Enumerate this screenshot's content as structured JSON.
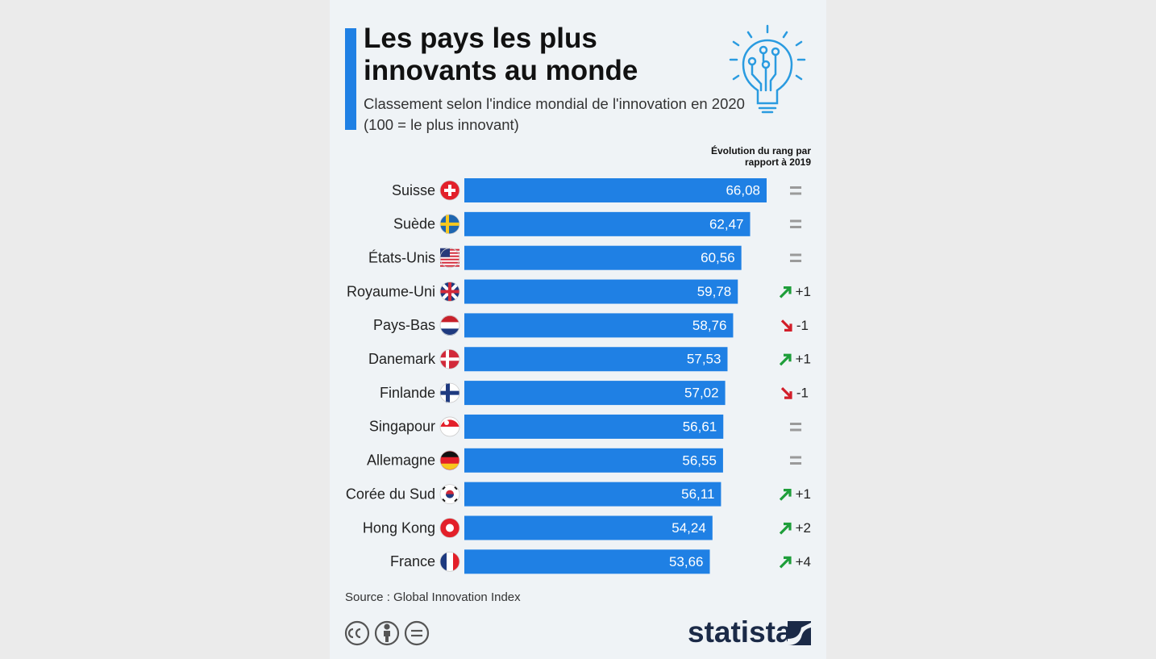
{
  "chart_data": {
    "type": "bar",
    "orientation": "horizontal",
    "title": "Les pays les plus innovants au monde",
    "subtitle": "Classement selon l'indice mondial de l'innovation en 2020 (100 = le plus innovant)",
    "rank_header": "Évolution du rang par rapport à 2019",
    "categories": [
      "Suisse",
      "Suède",
      "États-Unis",
      "Royaume-Uni",
      "Pays-Bas",
      "Danemark",
      "Finlande",
      "Singapour",
      "Allemagne",
      "Corée du Sud",
      "Hong Kong",
      "France"
    ],
    "values": [
      66.08,
      62.47,
      60.56,
      59.78,
      58.76,
      57.53,
      57.02,
      56.61,
      56.55,
      56.11,
      54.24,
      53.66
    ],
    "value_labels": [
      "66,08",
      "62,47",
      "60,56",
      "59,78",
      "58,76",
      "57,53",
      "57,02",
      "56,61",
      "56,55",
      "56,11",
      "54,24",
      "53,66"
    ],
    "rank_change": [
      "=",
      "=",
      "=",
      "+1",
      "-1",
      "+1",
      "-1",
      "=",
      "=",
      "+1",
      "+2",
      "+4"
    ],
    "color": "#1f80e4",
    "source": "Source : Global Innovation Index",
    "brand": "statista"
  }
}
